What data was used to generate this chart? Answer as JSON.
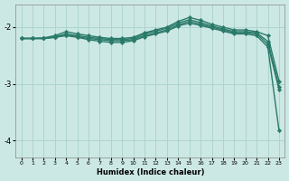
{
  "xlabel": "Humidex (Indice chaleur)",
  "ylabel": "",
  "background_color": "#cce8e4",
  "grid_color": "#aed4ce",
  "line_color": "#2a7a6a",
  "xlim": [
    -0.5,
    23.5
  ],
  "ylim": [
    -4.3,
    -1.6
  ],
  "yticks": [
    -4,
    -3,
    -2
  ],
  "xticks": [
    0,
    1,
    2,
    3,
    4,
    5,
    6,
    7,
    8,
    9,
    10,
    11,
    12,
    13,
    14,
    15,
    16,
    17,
    18,
    19,
    20,
    21,
    22,
    23
  ],
  "series": [
    {
      "x": [
        0,
        1,
        2,
        3,
        4,
        5,
        6,
        7,
        8,
        9,
        10,
        11,
        12,
        13,
        14,
        15,
        16,
        17,
        18,
        19,
        20,
        21,
        22,
        23
      ],
      "y": [
        -2.2,
        -2.2,
        -2.19,
        -2.15,
        -2.08,
        -2.12,
        -2.15,
        -2.18,
        -2.2,
        -2.2,
        -2.18,
        -2.1,
        -2.05,
        -2.0,
        -1.9,
        -1.83,
        -1.88,
        -1.95,
        -2.0,
        -2.05,
        -2.05,
        -2.08,
        -2.15,
        -2.95
      ],
      "marker": "D",
      "markersize": 2.2,
      "linewidth": 1.0
    },
    {
      "x": [
        0,
        1,
        2,
        3,
        4,
        5,
        6,
        7,
        8,
        9,
        10,
        11,
        12,
        13,
        14,
        15,
        16,
        17,
        18,
        19,
        20,
        21,
        22,
        23
      ],
      "y": [
        -2.2,
        -2.2,
        -2.2,
        -2.17,
        -2.12,
        -2.15,
        -2.18,
        -2.2,
        -2.22,
        -2.22,
        -2.2,
        -2.12,
        -2.07,
        -2.02,
        -1.93,
        -1.87,
        -1.92,
        -1.98,
        -2.03,
        -2.08,
        -2.08,
        -2.1,
        -2.25,
        -3.05
      ],
      "marker": "D",
      "markersize": 2.2,
      "linewidth": 1.0
    },
    {
      "x": [
        0,
        1,
        2,
        3,
        4,
        5,
        6,
        7,
        8,
        9,
        10,
        11,
        12,
        13,
        14,
        15,
        16,
        17,
        18,
        19,
        20,
        21,
        22,
        23
      ],
      "y": [
        -2.2,
        -2.2,
        -2.2,
        -2.18,
        -2.14,
        -2.17,
        -2.2,
        -2.22,
        -2.24,
        -2.24,
        -2.22,
        -2.15,
        -2.1,
        -2.05,
        -1.96,
        -1.9,
        -1.95,
        -2.0,
        -2.05,
        -2.1,
        -2.1,
        -2.12,
        -2.3,
        -3.1
      ],
      "marker": "D",
      "markersize": 2.2,
      "linewidth": 1.0
    },
    {
      "x": [
        0,
        1,
        2,
        3,
        4,
        5,
        6,
        7,
        8,
        9,
        10,
        11,
        12,
        13,
        14,
        15,
        16,
        17,
        18,
        19,
        20,
        21,
        22,
        23
      ],
      "y": [
        -2.2,
        -2.2,
        -2.2,
        -2.18,
        -2.15,
        -2.18,
        -2.22,
        -2.25,
        -2.27,
        -2.27,
        -2.24,
        -2.17,
        -2.12,
        -2.07,
        -1.98,
        -1.93,
        -1.97,
        -2.02,
        -2.07,
        -2.12,
        -2.12,
        -2.15,
        -2.35,
        -3.82
      ],
      "marker": "D",
      "markersize": 2.2,
      "linewidth": 1.0
    }
  ]
}
